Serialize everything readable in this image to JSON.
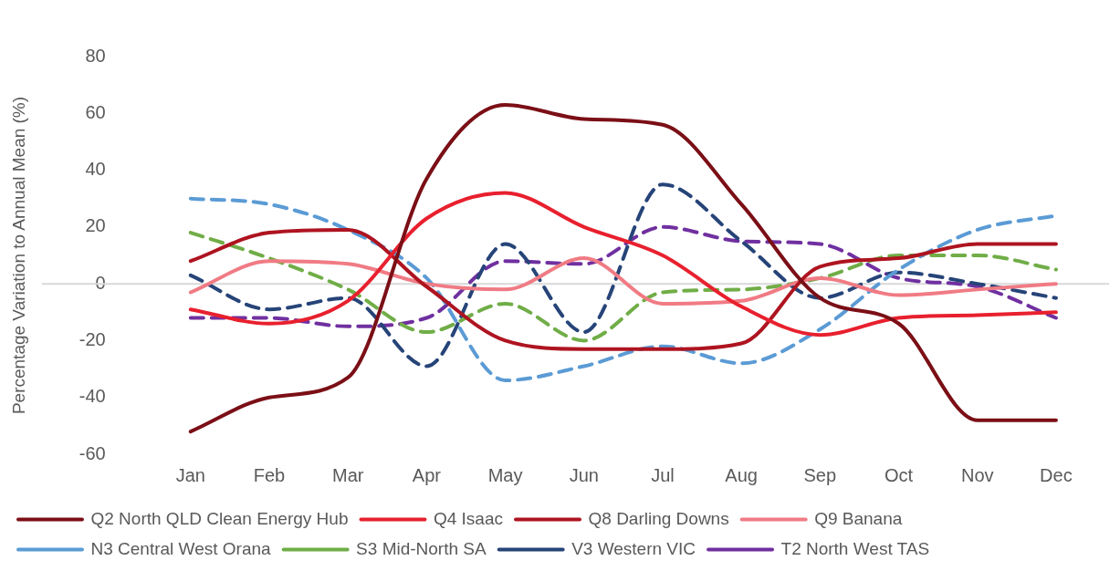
{
  "chart_data": {
    "type": "line",
    "ylabel": "Percentage Variation to Annual Mean (%)",
    "categories": [
      "Jan",
      "Feb",
      "Mar",
      "Apr",
      "May",
      "Jun",
      "Jul",
      "Aug",
      "Sep",
      "Oct",
      "Nov",
      "Dec"
    ],
    "ylim": [
      -60,
      80
    ],
    "yticks": [
      -60,
      -40,
      -20,
      0,
      20,
      40,
      60,
      80
    ],
    "grid": false,
    "legend": "bottom",
    "marker": "none",
    "ref_lines": [
      {
        "axis": "y",
        "value": 0,
        "color": "#d9d9d9"
      }
    ],
    "series": [
      {
        "name": "Q2 North QLD Clean Energy Hub",
        "color": "#7b0f16",
        "line_style": "solid",
        "values": [
          -52,
          -40,
          -33,
          37,
          63,
          58,
          56,
          28,
          -5,
          -14,
          -48,
          -48
        ]
      },
      {
        "name": "Q4 Isaac",
        "color": "#e8202e",
        "line_style": "solid",
        "values": [
          -9,
          -14,
          -6,
          23,
          32,
          20,
          10,
          -8,
          -18,
          -12,
          -11,
          -10
        ]
      },
      {
        "name": "Q8 Darling Downs",
        "color": "#ae1420",
        "line_style": "solid",
        "values": [
          8,
          18,
          19,
          -1,
          -20,
          -23,
          -23,
          -21,
          6,
          9,
          14,
          14
        ]
      },
      {
        "name": "Q9 Banana",
        "color": "#f07b84",
        "line_style": "solid",
        "values": [
          -3,
          8,
          7,
          0,
          -2,
          9,
          -7,
          -6,
          2,
          -4,
          -2,
          0
        ]
      },
      {
        "name": "N3 Central West Orana",
        "color": "#5b9bd5",
        "line_style": "dashed",
        "values": [
          30,
          28,
          19,
          2,
          -34,
          -29,
          -22,
          -28,
          -16,
          5,
          19,
          24
        ]
      },
      {
        "name": "S3 Mid-North SA",
        "color": "#70ad47",
        "line_style": "dashed",
        "values": [
          18,
          9,
          -2,
          -17,
          -7,
          -20,
          -3,
          -2,
          2,
          10,
          10,
          5
        ]
      },
      {
        "name": "V3 Western VIC",
        "color": "#264478",
        "line_style": "dashed",
        "values": [
          3,
          -9,
          -5,
          -29,
          14,
          -17,
          35,
          15,
          -5,
          4,
          0,
          -5
        ]
      },
      {
        "name": "T2 North West TAS",
        "color": "#7030a0",
        "line_style": "dashed",
        "values": [
          -12,
          -12,
          -15,
          -12,
          8,
          7,
          20,
          15,
          14,
          2,
          -1,
          -12
        ]
      }
    ]
  }
}
